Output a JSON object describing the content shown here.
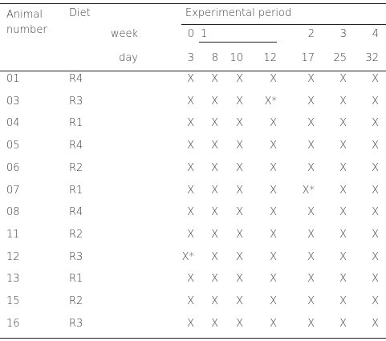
{
  "header": {
    "animal": "Animal number",
    "diet": "Diet",
    "period": "Experimental period",
    "week_label": "week",
    "day_label": "day",
    "weeks": [
      0,
      1,
      2,
      3,
      4
    ],
    "days": [
      3,
      8,
      10,
      12,
      17,
      25,
      32
    ]
  },
  "table": {
    "rows": [
      [
        "01",
        "R4",
        "X",
        "X",
        "X",
        "X",
        "X",
        "X",
        "X"
      ],
      [
        "03",
        "R3",
        "X",
        "X",
        "X",
        "X*",
        "X",
        "X",
        "X"
      ],
      [
        "04",
        "R1",
        "X",
        "X",
        "X",
        "X",
        "X",
        "X",
        "X"
      ],
      [
        "05",
        "R4",
        "X",
        "X",
        "X",
        "X",
        "X",
        "X",
        "X"
      ],
      [
        "06",
        "R2",
        "X",
        "X",
        "X",
        "X",
        "X",
        "X",
        "X"
      ],
      [
        "07",
        "R1",
        "X",
        "X",
        "X",
        "X",
        "X*",
        "X",
        "X"
      ],
      [
        "08",
        "R4",
        "X",
        "X",
        "X",
        "X",
        "X",
        "X",
        "X"
      ],
      [
        "11",
        "R2",
        "X",
        "X",
        "X",
        "X",
        "X",
        "X",
        "X"
      ],
      [
        "12",
        "R3",
        "X*",
        "X",
        "X",
        "X",
        "X",
        "X",
        "X"
      ],
      [
        "13",
        "R1",
        "X",
        "X",
        "X",
        "X",
        "X",
        "X",
        "X"
      ],
      [
        "15",
        "R2",
        "X",
        "X",
        "X",
        "X",
        "X",
        "X",
        "X"
      ],
      [
        "16",
        "R3",
        "X",
        "X",
        "X",
        "X",
        "X",
        "X",
        "X"
      ]
    ]
  }
}
